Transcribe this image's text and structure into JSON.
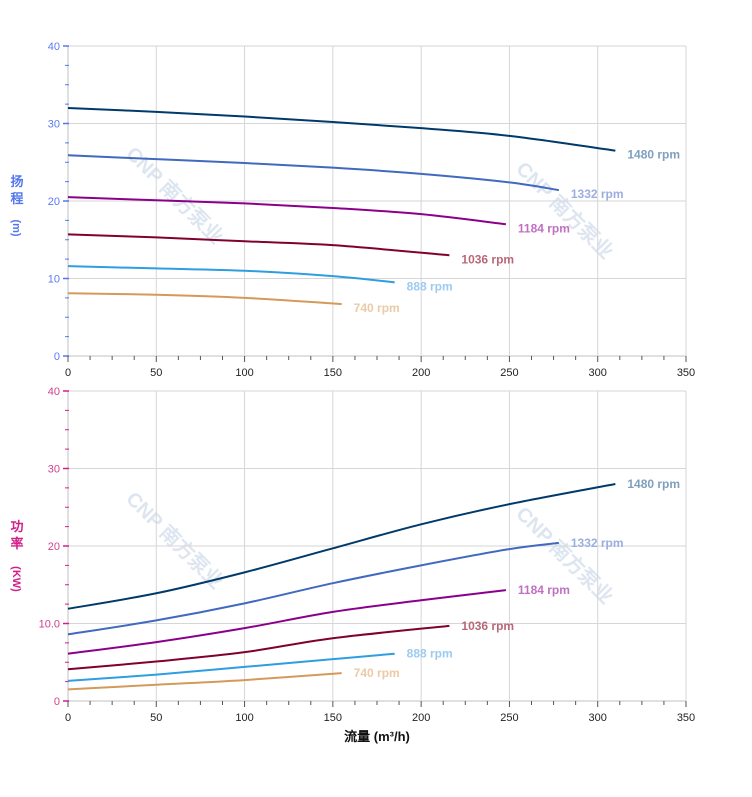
{
  "watermark": "CNP 南方泵业",
  "chart_data": [
    {
      "type": "line",
      "ylabel_chars": [
        "扬",
        "程"
      ],
      "ylabel_unit": "(m)",
      "xlim": [
        0,
        350
      ],
      "ylim": [
        0,
        40
      ],
      "xticks": [
        "0",
        "50",
        "100",
        "150",
        "200",
        "250",
        "300",
        "350"
      ],
      "yticks": [
        "0",
        "10",
        "20",
        "30",
        "40"
      ],
      "grid": true,
      "axis_color": "#5577ee",
      "series": [
        {
          "name": "1480 rpm",
          "color": "#003a6b",
          "label_color": "#7f9fbf",
          "x": [
            0,
            50,
            100,
            150,
            200,
            250,
            310
          ],
          "y": [
            32.0,
            31.5,
            30.9,
            30.2,
            29.4,
            28.4,
            26.5
          ]
        },
        {
          "name": "1332 rpm",
          "color": "#4169c0",
          "label_color": "#9aaee0",
          "x": [
            0,
            50,
            100,
            150,
            200,
            250,
            278
          ],
          "y": [
            25.9,
            25.4,
            24.9,
            24.3,
            23.5,
            22.4,
            21.4
          ]
        },
        {
          "name": "1184 rpm",
          "color": "#8b008b",
          "label_color": "#c070c0",
          "x": [
            0,
            50,
            100,
            150,
            200,
            248
          ],
          "y": [
            20.5,
            20.1,
            19.7,
            19.1,
            18.3,
            17.0
          ]
        },
        {
          "name": "1036 rpm",
          "color": "#800030",
          "label_color": "#b86878",
          "x": [
            0,
            50,
            100,
            150,
            216
          ],
          "y": [
            15.7,
            15.3,
            14.8,
            14.3,
            13.0
          ]
        },
        {
          "name": "888 rpm",
          "color": "#2e9ee0",
          "label_color": "#9ccaf0",
          "x": [
            0,
            50,
            100,
            150,
            185
          ],
          "y": [
            11.6,
            11.3,
            11.0,
            10.3,
            9.5
          ]
        },
        {
          "name": "740 rpm",
          "color": "#d49a5a",
          "label_color": "#eccaa6",
          "x": [
            0,
            50,
            100,
            155
          ],
          "y": [
            8.1,
            7.9,
            7.5,
            6.7
          ]
        }
      ]
    },
    {
      "type": "line",
      "ylabel_chars": [
        "功",
        "率"
      ],
      "ylabel_unit": "(KW)",
      "xlabel": "流量 (m³/h)",
      "xlim": [
        0,
        350
      ],
      "ylim": [
        0,
        40
      ],
      "xticks": [
        "0",
        "50",
        "100",
        "150",
        "200",
        "250",
        "300",
        "350"
      ],
      "yticks": [
        "0",
        "10.0",
        "20",
        "30",
        "40"
      ],
      "grid": true,
      "axis_color": "#d0208a",
      "series": [
        {
          "name": "1480 rpm",
          "color": "#003a6b",
          "label_color": "#7f9fbf",
          "x": [
            0,
            50,
            100,
            150,
            200,
            250,
            310
          ],
          "y": [
            11.9,
            13.9,
            16.6,
            19.7,
            22.8,
            25.4,
            28.0
          ]
        },
        {
          "name": "1332 rpm",
          "color": "#4169c0",
          "label_color": "#9aaee0",
          "x": [
            0,
            50,
            100,
            150,
            200,
            250,
            278
          ],
          "y": [
            8.6,
            10.4,
            12.6,
            15.2,
            17.5,
            19.6,
            20.4
          ]
        },
        {
          "name": "1184 rpm",
          "color": "#8b008b",
          "label_color": "#c070c0",
          "x": [
            0,
            50,
            100,
            150,
            200,
            248
          ],
          "y": [
            6.1,
            7.6,
            9.4,
            11.5,
            13.0,
            14.3
          ]
        },
        {
          "name": "1036 rpm",
          "color": "#800030",
          "label_color": "#b86878",
          "x": [
            0,
            50,
            100,
            150,
            216
          ],
          "y": [
            4.1,
            5.1,
            6.3,
            8.1,
            9.7
          ]
        },
        {
          "name": "888 rpm",
          "color": "#2e9ee0",
          "label_color": "#9ccaf0",
          "x": [
            0,
            50,
            100,
            150,
            185
          ],
          "y": [
            2.6,
            3.4,
            4.4,
            5.4,
            6.1
          ]
        },
        {
          "name": "740 rpm",
          "color": "#d49a5a",
          "label_color": "#eccaa6",
          "x": [
            0,
            50,
            100,
            155
          ],
          "y": [
            1.5,
            2.1,
            2.7,
            3.6
          ]
        }
      ]
    }
  ]
}
